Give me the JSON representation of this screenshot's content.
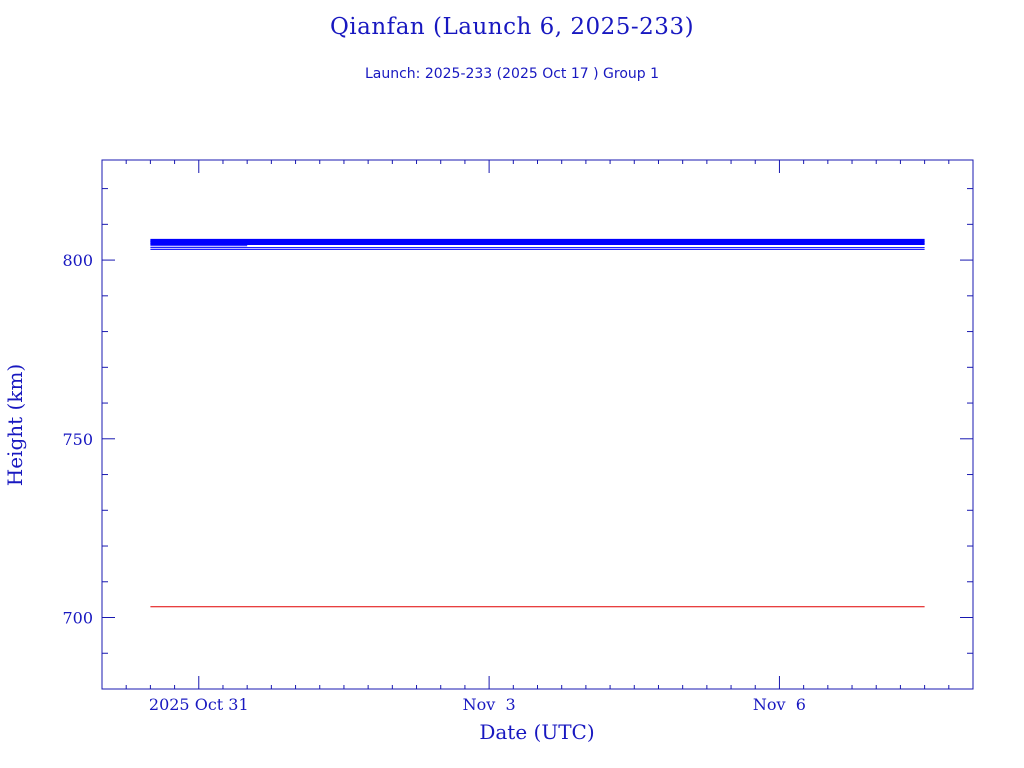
{
  "header": {
    "title": "Qianfan (Launch 6, 2025-233)",
    "subtitle": "Launch: 2025-233  (2025 Oct 17 )  Group 1"
  },
  "colors": {
    "axis": "#1818b0",
    "text": "#1818c0",
    "series_blue": "#0000ff",
    "series_red": "#e00000"
  },
  "chart_data": {
    "type": "line",
    "title": "Qianfan (Launch 6, 2025-233)",
    "subtitle": "Launch: 2025-233  (2025 Oct 17 )  Group 1",
    "xlabel": "Date (UTC)",
    "ylabel": "Height (km)",
    "xlim": [
      "2025-10-30",
      "2025-11-08"
    ],
    "ylim": [
      680,
      828
    ],
    "x_ticks": [
      {
        "date": "2025-10-31",
        "label": "2025 Oct 31"
      },
      {
        "date": "2025-11-03",
        "label": "Nov  3"
      },
      {
        "date": "2025-11-06",
        "label": "Nov  6"
      }
    ],
    "y_ticks": [
      700,
      750,
      800
    ],
    "grid": false,
    "series": [
      {
        "color": "#0000ff",
        "x": [
          "2025-10-30T12:00",
          "2025-11-07T12:00"
        ],
        "y": [
          805.5,
          805.5
        ],
        "width": 3
      },
      {
        "color": "#0000ff",
        "x": [
          "2025-10-30T12:00",
          "2025-11-07T12:00"
        ],
        "y": [
          805,
          805
        ],
        "width": 3
      },
      {
        "color": "#0000ff",
        "x": [
          "2025-10-30T12:00",
          "2025-11-07T12:00"
        ],
        "y": [
          804.5,
          804.5
        ],
        "width": 2
      },
      {
        "color": "#0000ff",
        "x": [
          "2025-10-30T12:00",
          "2025-10-31T12:00"
        ],
        "y": [
          804,
          804
        ],
        "width": 1
      },
      {
        "color": "#0000ff",
        "x": [
          "2025-10-30T12:00",
          "2025-11-07T12:00"
        ],
        "y": [
          803.5,
          803.5
        ],
        "width": 1
      },
      {
        "color": "#0000ff",
        "x": [
          "2025-10-30T12:00",
          "2025-11-07T12:00"
        ],
        "y": [
          803,
          803
        ],
        "width": 1
      },
      {
        "color": "#e00000",
        "x": [
          "2025-10-30T12:00",
          "2025-11-07T12:00"
        ],
        "y": [
          703,
          703
        ],
        "width": 1
      }
    ]
  }
}
